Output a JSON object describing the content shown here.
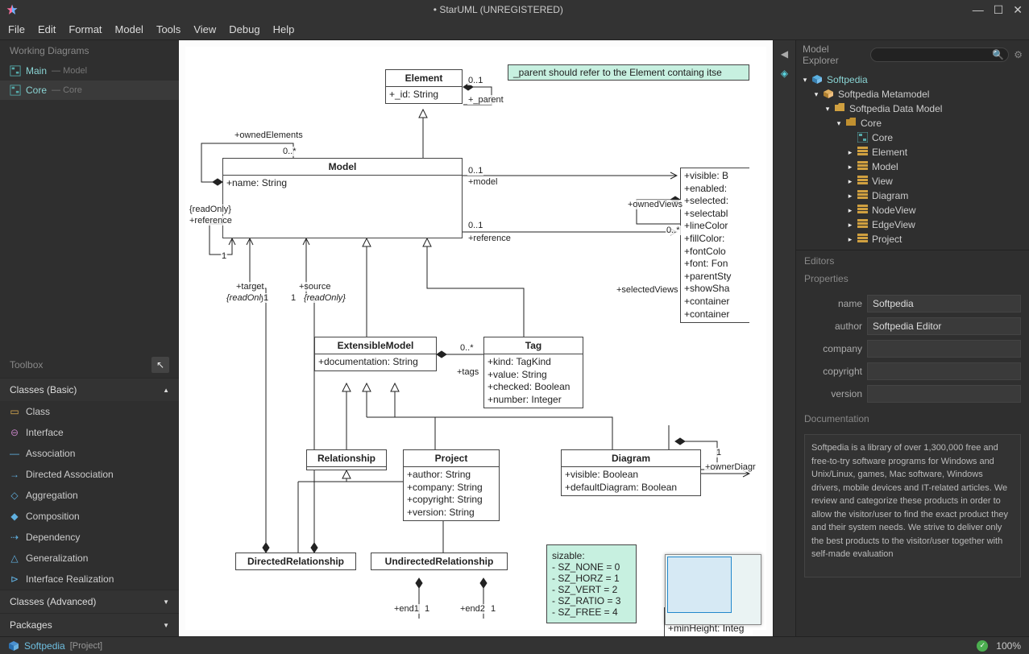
{
  "app": {
    "title": "• StarUML (UNREGISTERED)"
  },
  "menu": [
    "File",
    "Edit",
    "Format",
    "Model",
    "Tools",
    "View",
    "Debug",
    "Help"
  ],
  "workingDiagrams": {
    "title": "Working Diagrams",
    "items": [
      {
        "name": "Main",
        "suffix": "— Model"
      },
      {
        "name": "Core",
        "suffix": "— Core"
      }
    ]
  },
  "toolbox": {
    "title": "Toolbox",
    "sections": [
      {
        "label": "Classes (Basic)",
        "expanded": true
      },
      {
        "label": "Classes (Advanced)",
        "expanded": false
      },
      {
        "label": "Packages",
        "expanded": false
      }
    ],
    "items": [
      {
        "label": "Class",
        "icon": "▭",
        "color": "#e0b050"
      },
      {
        "label": "Interface",
        "icon": "⊖",
        "color": "#c080c0"
      },
      {
        "label": "Association",
        "icon": "—",
        "color": "#60b0e0"
      },
      {
        "label": "Directed Association",
        "icon": "→",
        "color": "#60b0e0"
      },
      {
        "label": "Aggregation",
        "icon": "◇",
        "color": "#60b0e0"
      },
      {
        "label": "Composition",
        "icon": "◆",
        "color": "#60b0e0"
      },
      {
        "label": "Dependency",
        "icon": "⇢",
        "color": "#60b0e0"
      },
      {
        "label": "Generalization",
        "icon": "△",
        "color": "#60b0e0"
      },
      {
        "label": "Interface Realization",
        "icon": "⊳",
        "color": "#60b0e0"
      }
    ]
  },
  "uml": {
    "note": "_parent should refer to the Element containg itse",
    "labels": {
      "ownedElements": "+ownedElements",
      "parent": "+_parent",
      "model": "+model",
      "reference": "+reference",
      "target": "+target",
      "source": "+source",
      "tags": "+tags",
      "ownedViews": "+ownedViews",
      "selectedViews": "+selectedViews",
      "ownerDiagr": "+ownerDiagr",
      "end1": "+end1",
      "end2": "+end2",
      "readOnly": "{readOnly}"
    },
    "mult": {
      "zeroOne": "0..1",
      "zeroStar": "0..*",
      "one": "1"
    },
    "classes": {
      "Element": {
        "title": "Element",
        "attrs": [
          "+_id: String"
        ]
      },
      "Model": {
        "title": "Model",
        "attrs": [
          "+name: String"
        ]
      },
      "ExtensibleModel": {
        "title": "ExtensibleModel",
        "attrs": [
          "+documentation: String"
        ]
      },
      "Tag": {
        "title": "Tag",
        "attrs": [
          "+kind: TagKind",
          "+value: String",
          "+checked: Boolean",
          "+number: Integer"
        ]
      },
      "Relationship": {
        "title": "Relationship",
        "attrs": []
      },
      "Project": {
        "title": "Project",
        "attrs": [
          "+author: String",
          "+company: String",
          "+copyright: String",
          "+version: String"
        ]
      },
      "Diagram": {
        "title": "Diagram",
        "attrs": [
          "+visible: Boolean",
          "+defaultDiagram: Boolean"
        ]
      },
      "DirectedRelationship": {
        "title": "DirectedRelationship",
        "attrs": []
      },
      "UndirectedRelationship": {
        "title": "UndirectedRelationship",
        "attrs": []
      },
      "ViewPartial": {
        "title": "",
        "attrs": [
          "+visible: B",
          "+enabled:",
          "+selected:",
          "+selectabl",
          "+lineColor",
          "+fillColor:",
          "+fontColo",
          "+font: Fon",
          "+parentSty",
          "+showSha",
          "+container",
          "+container"
        ]
      },
      "Partial2": {
        "title": "",
        "attrs": [
          "+minHeight: Integ"
        ]
      }
    },
    "sizableNote": [
      "sizable:",
      "- SZ_NONE = 0",
      "- SZ_HORZ = 1",
      "- SZ_VERT = 2",
      "- SZ_RATIO = 3",
      "- SZ_FREE = 4"
    ],
    "minimap": {
      "vx": 2,
      "vy": 2,
      "vw": 80,
      "vh": 70
    }
  },
  "explorer": {
    "title": "Model Explorer",
    "searchPlaceholder": "",
    "tree": [
      {
        "indent": 0,
        "tw": "▾",
        "icon": "cube-blue",
        "label": "Softpedia",
        "sel": true
      },
      {
        "indent": 1,
        "tw": "▾",
        "icon": "cube-gold",
        "label": "Softpedia Metamodel"
      },
      {
        "indent": 2,
        "tw": "▾",
        "icon": "folder-open",
        "label": "Softpedia Data Model"
      },
      {
        "indent": 3,
        "tw": "▾",
        "icon": "folder",
        "label": "Core"
      },
      {
        "indent": 4,
        "tw": " ",
        "icon": "diagram",
        "label": "Core"
      },
      {
        "indent": 4,
        "tw": "▸",
        "icon": "bars",
        "label": "Element"
      },
      {
        "indent": 4,
        "tw": "▸",
        "icon": "bars",
        "label": "Model"
      },
      {
        "indent": 4,
        "tw": "▸",
        "icon": "bars",
        "label": "View"
      },
      {
        "indent": 4,
        "tw": "▸",
        "icon": "bars",
        "label": "Diagram"
      },
      {
        "indent": 4,
        "tw": "▸",
        "icon": "bars",
        "label": "NodeView"
      },
      {
        "indent": 4,
        "tw": "▸",
        "icon": "bars",
        "label": "EdgeView"
      },
      {
        "indent": 4,
        "tw": "▸",
        "icon": "bars",
        "label": "Project"
      }
    ]
  },
  "editors": {
    "title": "Editors",
    "propsTitle": "Properties",
    "props": [
      {
        "k": "name",
        "v": "Softpedia"
      },
      {
        "k": "author",
        "v": "Softpedia Editor"
      },
      {
        "k": "company",
        "v": ""
      },
      {
        "k": "copyright",
        "v": ""
      },
      {
        "k": "version",
        "v": ""
      }
    ],
    "docTitle": "Documentation",
    "doc": "Softpedia is a library of over 1,300,000 free and free-to-try software programs for Windows and Unix/Linux, games, Mac software, Windows drivers, mobile devices and IT-related articles.\n\nWe review and categorize these products in order to allow the visitor/user to find the exact product they and their system needs.\n\nWe strive to deliver only the best products to the visitor/user together with self-made evaluation"
  },
  "statusbar": {
    "crumb1": "Softpedia",
    "crumb2": "[Project]",
    "zoom": "100%"
  }
}
